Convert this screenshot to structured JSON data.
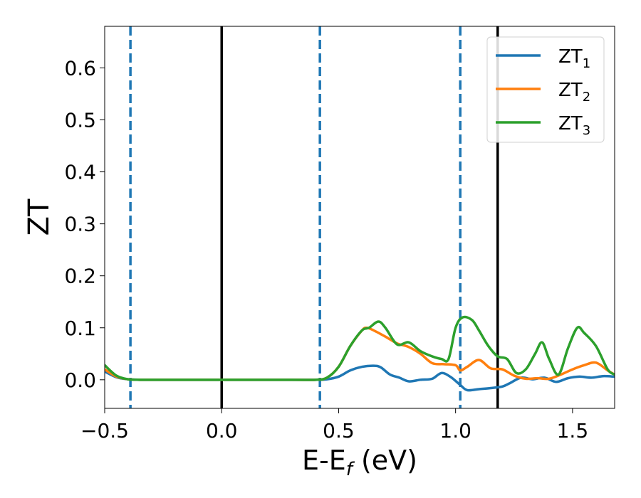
{
  "chart_data": {
    "type": "line",
    "title": "",
    "xlabel": "E-E",
    "xlabel_sub": "f",
    "xlabel_suffix": " (eV)",
    "ylabel": "ZT",
    "xlim": [
      -0.5,
      1.68
    ],
    "ylim": [
      -0.055,
      0.68
    ],
    "xticks": [
      -0.5,
      0.0,
      0.5,
      1.0,
      1.5
    ],
    "xtick_labels": [
      "−0.5",
      "0.0",
      "0.5",
      "1.0",
      "1.5"
    ],
    "yticks": [
      0.0,
      0.1,
      0.2,
      0.3,
      0.4,
      0.5,
      0.6
    ],
    "ytick_labels": [
      "0.0",
      "0.1",
      "0.2",
      "0.3",
      "0.4",
      "0.5",
      "0.6"
    ],
    "grid": false,
    "legend_position": "top-right",
    "vlines": [
      {
        "x": -0.39,
        "style": "dashed",
        "color": "#1f77b4"
      },
      {
        "x": 0.0,
        "style": "solid",
        "color": "#000000"
      },
      {
        "x": 0.42,
        "style": "dashed",
        "color": "#1f77b4"
      },
      {
        "x": 1.02,
        "style": "dashed",
        "color": "#1f77b4"
      },
      {
        "x": 1.18,
        "style": "solid",
        "color": "#000000"
      }
    ],
    "series": [
      {
        "name": "ZT",
        "sub": "1",
        "color": "#1f77b4",
        "x": [
          -0.5,
          -0.45,
          -0.4,
          -0.35,
          -0.3,
          0.0,
          0.3,
          0.4,
          0.45,
          0.5,
          0.55,
          0.6,
          0.65,
          0.68,
          0.72,
          0.76,
          0.8,
          0.85,
          0.9,
          0.94,
          0.98,
          1.02,
          1.05,
          1.1,
          1.15,
          1.2,
          1.23,
          1.28,
          1.33,
          1.38,
          1.43,
          1.48,
          1.53,
          1.58,
          1.63,
          1.68
        ],
        "y": [
          0.016,
          0.005,
          0.001,
          0.0,
          0.0,
          0.0,
          0.0,
          0.0,
          0.001,
          0.006,
          0.018,
          0.025,
          0.027,
          0.024,
          0.01,
          0.004,
          -0.003,
          0.0,
          0.002,
          0.013,
          0.005,
          -0.01,
          -0.02,
          -0.018,
          -0.016,
          -0.013,
          -0.007,
          0.004,
          0.001,
          0.004,
          -0.004,
          0.003,
          0.006,
          0.004,
          0.007,
          0.006
        ]
      },
      {
        "name": "ZT",
        "sub": "2",
        "color": "#ff7f0e",
        "x": [
          -0.5,
          -0.45,
          -0.4,
          -0.35,
          -0.3,
          0.0,
          0.3,
          0.4,
          0.45,
          0.5,
          0.55,
          0.6,
          0.62,
          0.65,
          0.7,
          0.75,
          0.8,
          0.85,
          0.9,
          0.95,
          1.0,
          1.02,
          1.05,
          1.1,
          1.15,
          1.2,
          1.25,
          1.3,
          1.35,
          1.4,
          1.45,
          1.5,
          1.55,
          1.6,
          1.65,
          1.68
        ],
        "y": [
          0.02,
          0.006,
          0.001,
          0.0,
          0.0,
          0.0,
          0.0,
          0.0,
          0.004,
          0.025,
          0.065,
          0.095,
          0.1,
          0.095,
          0.083,
          0.07,
          0.063,
          0.05,
          0.032,
          0.03,
          0.028,
          0.018,
          0.025,
          0.038,
          0.022,
          0.02,
          0.008,
          0.002,
          0.003,
          0.002,
          0.01,
          0.02,
          0.028,
          0.033,
          0.018,
          0.01
        ]
      },
      {
        "name": "ZT",
        "sub": "3",
        "color": "#2ca02c",
        "x": [
          -0.5,
          -0.45,
          -0.4,
          -0.35,
          -0.3,
          0.0,
          0.3,
          0.4,
          0.45,
          0.5,
          0.55,
          0.6,
          0.63,
          0.67,
          0.7,
          0.75,
          0.8,
          0.85,
          0.9,
          0.94,
          0.97,
          1.0,
          1.03,
          1.07,
          1.1,
          1.14,
          1.18,
          1.22,
          1.26,
          1.3,
          1.34,
          1.37,
          1.4,
          1.44,
          1.48,
          1.52,
          1.55,
          1.6,
          1.65,
          1.68
        ],
        "y": [
          0.028,
          0.008,
          0.001,
          0.0,
          0.0,
          0.0,
          0.0,
          0.0,
          0.004,
          0.025,
          0.065,
          0.095,
          0.1,
          0.112,
          0.1,
          0.068,
          0.072,
          0.055,
          0.045,
          0.04,
          0.04,
          0.1,
          0.12,
          0.115,
          0.095,
          0.065,
          0.045,
          0.04,
          0.013,
          0.02,
          0.05,
          0.072,
          0.04,
          0.01,
          0.06,
          0.1,
          0.09,
          0.065,
          0.02,
          0.01
        ]
      }
    ]
  }
}
